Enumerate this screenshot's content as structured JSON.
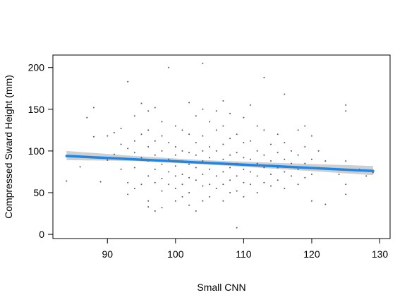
{
  "chart_data": {
    "type": "scatter",
    "title": "",
    "xlabel": "Small CNN",
    "ylabel": "Compressed Sward Height (mm)",
    "xlim": [
      82,
      131.5
    ],
    "ylim": [
      -5,
      215
    ],
    "xticks": [
      90,
      100,
      110,
      120,
      130
    ],
    "yticks": [
      0,
      50,
      100,
      150,
      200
    ],
    "grid": false,
    "legend": "none",
    "colors": {
      "points": "#555555",
      "fit_line": "#1f86e6",
      "confidence_band": "#cfcfcf",
      "frame": "#000000"
    },
    "fit": {
      "x": [
        84,
        129
      ],
      "y": [
        94,
        76
      ]
    },
    "confidence_band": {
      "x": [
        84,
        94,
        104,
        114,
        129
      ],
      "lower": [
        89,
        88,
        84,
        79,
        71
      ],
      "upper": [
        100,
        94,
        89,
        86,
        82
      ]
    },
    "points": [
      [
        84,
        64
      ],
      [
        86,
        81
      ],
      [
        87,
        140
      ],
      [
        88,
        152
      ],
      [
        88,
        117
      ],
      [
        89,
        63
      ],
      [
        90,
        118
      ],
      [
        90,
        89
      ],
      [
        91,
        122
      ],
      [
        91,
        96
      ],
      [
        92,
        127
      ],
      [
        92,
        108
      ],
      [
        92,
        78
      ],
      [
        93,
        183
      ],
      [
        93,
        103
      ],
      [
        93,
        62
      ],
      [
        93,
        48
      ],
      [
        94,
        142
      ],
      [
        94,
        112
      ],
      [
        94,
        98
      ],
      [
        94,
        80
      ],
      [
        94,
        55
      ],
      [
        95,
        157
      ],
      [
        95,
        120
      ],
      [
        95,
        92
      ],
      [
        95,
        60
      ],
      [
        96,
        148
      ],
      [
        96,
        125
      ],
      [
        96,
        105
      ],
      [
        96,
        88
      ],
      [
        96,
        70
      ],
      [
        96,
        40
      ],
      [
        96,
        33
      ],
      [
        97,
        152
      ],
      [
        97,
        112
      ],
      [
        97,
        95
      ],
      [
        97,
        78
      ],
      [
        97,
        62
      ],
      [
        97,
        28
      ],
      [
        98,
        135
      ],
      [
        98,
        118
      ],
      [
        98,
        100
      ],
      [
        98,
        84
      ],
      [
        98,
        67
      ],
      [
        98,
        52
      ],
      [
        98,
        32
      ],
      [
        99,
        200
      ],
      [
        99,
        110
      ],
      [
        99,
        90
      ],
      [
        99,
        75
      ],
      [
        99,
        60
      ],
      [
        100,
        130
      ],
      [
        100,
        105
      ],
      [
        100,
        95
      ],
      [
        100,
        82
      ],
      [
        100,
        70
      ],
      [
        100,
        55
      ],
      [
        100,
        40
      ],
      [
        101,
        125
      ],
      [
        101,
        100
      ],
      [
        101,
        88
      ],
      [
        101,
        72
      ],
      [
        101,
        60
      ],
      [
        101,
        45
      ],
      [
        102,
        158
      ],
      [
        102,
        120
      ],
      [
        102,
        98
      ],
      [
        102,
        84
      ],
      [
        102,
        68
      ],
      [
        102,
        50
      ],
      [
        102,
        35
      ],
      [
        103,
        142
      ],
      [
        103,
        110
      ],
      [
        103,
        95
      ],
      [
        103,
        80
      ],
      [
        103,
        65
      ],
      [
        103,
        28
      ],
      [
        104,
        205
      ],
      [
        104,
        150
      ],
      [
        104,
        118
      ],
      [
        104,
        100
      ],
      [
        104,
        88
      ],
      [
        104,
        72
      ],
      [
        104,
        58
      ],
      [
        104,
        40
      ],
      [
        105,
        135
      ],
      [
        105,
        105
      ],
      [
        105,
        92
      ],
      [
        105,
        78
      ],
      [
        105,
        60
      ],
      [
        105,
        45
      ],
      [
        106,
        148
      ],
      [
        106,
        125
      ],
      [
        106,
        100
      ],
      [
        106,
        85
      ],
      [
        106,
        70
      ],
      [
        106,
        55
      ],
      [
        107,
        160
      ],
      [
        107,
        130
      ],
      [
        107,
        108
      ],
      [
        107,
        90
      ],
      [
        107,
        75
      ],
      [
        107,
        60
      ],
      [
        107,
        40
      ],
      [
        108,
        145
      ],
      [
        108,
        115
      ],
      [
        108,
        95
      ],
      [
        108,
        80
      ],
      [
        108,
        65
      ],
      [
        108,
        50
      ],
      [
        109,
        8
      ],
      [
        109,
        120
      ],
      [
        109,
        98
      ],
      [
        109,
        85
      ],
      [
        109,
        70
      ],
      [
        109,
        52
      ],
      [
        110,
        140
      ],
      [
        110,
        110
      ],
      [
        110,
        92
      ],
      [
        110,
        78
      ],
      [
        110,
        62
      ],
      [
        110,
        45
      ],
      [
        111,
        155
      ],
      [
        111,
        112
      ],
      [
        111,
        90
      ],
      [
        111,
        75
      ],
      [
        111,
        60
      ],
      [
        112,
        130
      ],
      [
        112,
        100
      ],
      [
        112,
        85
      ],
      [
        112,
        70
      ],
      [
        112,
        50
      ],
      [
        113,
        188
      ],
      [
        113,
        125
      ],
      [
        113,
        95
      ],
      [
        113,
        80
      ],
      [
        113,
        62
      ],
      [
        114,
        108
      ],
      [
        114,
        88
      ],
      [
        114,
        72
      ],
      [
        114,
        58
      ],
      [
        115,
        120
      ],
      [
        115,
        98
      ],
      [
        115,
        80
      ],
      [
        115,
        65
      ],
      [
        116,
        168
      ],
      [
        116,
        110
      ],
      [
        116,
        90
      ],
      [
        116,
        75
      ],
      [
        116,
        55
      ],
      [
        117,
        100
      ],
      [
        117,
        85
      ],
      [
        117,
        70
      ],
      [
        118,
        125
      ],
      [
        118,
        95
      ],
      [
        118,
        78
      ],
      [
        118,
        60
      ],
      [
        119,
        130
      ],
      [
        119,
        105
      ],
      [
        119,
        85
      ],
      [
        119,
        68
      ],
      [
        120,
        118
      ],
      [
        120,
        90
      ],
      [
        120,
        72
      ],
      [
        120,
        40
      ],
      [
        121,
        100
      ],
      [
        121,
        80
      ],
      [
        122,
        36
      ],
      [
        122,
        88
      ],
      [
        124,
        72
      ],
      [
        125,
        155
      ],
      [
        125,
        148
      ],
      [
        125,
        60
      ],
      [
        125,
        48
      ],
      [
        125,
        88
      ],
      [
        127,
        78
      ],
      [
        128,
        70
      ],
      [
        129,
        74
      ]
    ]
  }
}
